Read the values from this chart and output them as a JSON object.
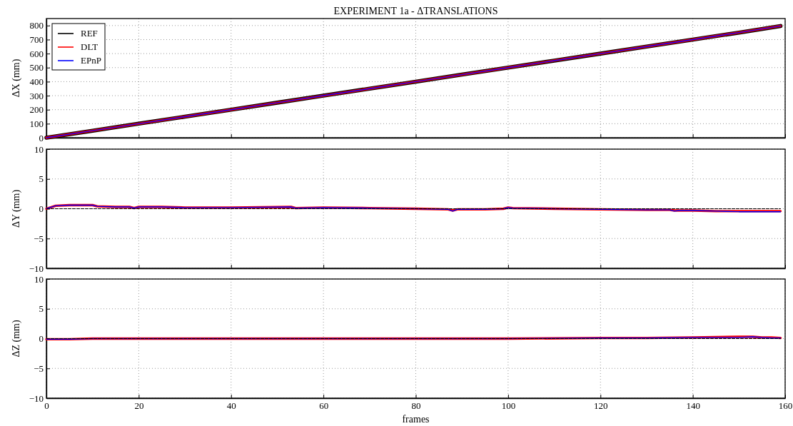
{
  "chart_data": [
    {
      "type": "line",
      "title": "EXPERIMENT 1a - ΔTRANSLATIONS",
      "ylabel": "ΔX (mm)",
      "xlim": [
        0,
        160
      ],
      "xticks": [
        0,
        20,
        40,
        60,
        80,
        100,
        120,
        140,
        160
      ],
      "ylim": [
        0,
        850
      ],
      "yticks": [
        0,
        100,
        200,
        300,
        400,
        500,
        600,
        700,
        800
      ],
      "grid": true,
      "legend": "top left",
      "tick_labels": "y",
      "series": [
        {
          "name": "REF",
          "color": "#000000",
          "line_style": "solid",
          "x": [
            0,
            10,
            20,
            30,
            40,
            50,
            60,
            70,
            80,
            90,
            100,
            110,
            120,
            130,
            140,
            150,
            159
          ],
          "values": [
            0,
            50,
            100,
            150,
            200,
            250,
            300,
            350,
            400,
            450,
            500,
            550,
            600,
            650,
            700,
            750,
            797
          ]
        },
        {
          "name": "DLT",
          "color": "#ff0000",
          "line_style": "solid",
          "x": [
            0,
            10,
            20,
            30,
            40,
            50,
            60,
            70,
            80,
            90,
            100,
            110,
            120,
            130,
            140,
            150,
            159
          ],
          "values": [
            0,
            50,
            100,
            150,
            200,
            250,
            300,
            350,
            400,
            450,
            500,
            550,
            600,
            650,
            700,
            750,
            797
          ]
        },
        {
          "name": "EPnP",
          "color": "#0000ff",
          "line_style": "solid",
          "x": [
            0,
            10,
            20,
            30,
            40,
            50,
            60,
            70,
            80,
            90,
            100,
            110,
            120,
            130,
            140,
            150,
            159
          ],
          "values": [
            0,
            50,
            100,
            150,
            200,
            250,
            300,
            350,
            400,
            450,
            500,
            550,
            600,
            650,
            700,
            750,
            797
          ]
        }
      ]
    },
    {
      "type": "line",
      "ylabel": "ΔY (mm)",
      "xlim": [
        0,
        160
      ],
      "xticks": [
        0,
        20,
        40,
        60,
        80,
        100,
        120,
        140,
        160
      ],
      "ylim": [
        -10,
        10
      ],
      "yticks": [
        -10,
        -5,
        0,
        5,
        10
      ],
      "grid": true,
      "tick_labels": "y",
      "series": [
        {
          "color": "#000000",
          "line_style": "dashed",
          "x": [
            0,
            159
          ],
          "values": [
            0,
            0
          ]
        },
        {
          "color": "#ff0000",
          "line_style": "solid",
          "x": [
            0,
            2,
            5,
            10,
            11,
            15,
            18,
            19,
            20,
            25,
            30,
            40,
            53,
            54,
            60,
            70,
            80,
            87,
            88,
            89,
            95,
            99,
            100,
            101,
            110,
            120,
            130,
            135,
            136,
            137,
            140,
            145,
            150,
            159
          ],
          "values": [
            0,
            0.5,
            0.6,
            0.6,
            0.4,
            0.3,
            0.3,
            0.1,
            0.3,
            0.3,
            0.2,
            0.2,
            0.3,
            0.1,
            0.2,
            0.1,
            0,
            -0.1,
            -0.3,
            -0.1,
            -0.1,
            0,
            0.2,
            0.1,
            0,
            -0.1,
            -0.2,
            -0.2,
            -0.3,
            -0.3,
            -0.3,
            -0.4,
            -0.4,
            -0.4
          ]
        },
        {
          "color": "#0000ff",
          "line_style": "solid",
          "x": [
            0,
            2,
            5,
            10,
            11,
            15,
            18,
            19,
            20,
            25,
            30,
            40,
            53,
            54,
            60,
            70,
            80,
            87,
            88,
            89,
            95,
            99,
            100,
            101,
            110,
            120,
            130,
            135,
            136,
            137,
            140,
            145,
            150,
            159
          ],
          "values": [
            0,
            0.5,
            0.6,
            0.6,
            0.4,
            0.3,
            0.3,
            0.1,
            0.3,
            0.3,
            0.2,
            0.2,
            0.3,
            0.1,
            0.2,
            0.1,
            0,
            -0.1,
            -0.4,
            -0.1,
            -0.1,
            0,
            0.2,
            0.1,
            0,
            -0.1,
            -0.2,
            -0.2,
            -0.4,
            -0.3,
            -0.3,
            -0.4,
            -0.5,
            -0.5
          ]
        }
      ]
    },
    {
      "type": "line",
      "ylabel": "ΔZ (mm)",
      "xlabel": "frames",
      "xlim": [
        0,
        160
      ],
      "xticks": [
        0,
        20,
        40,
        60,
        80,
        100,
        120,
        140,
        160
      ],
      "ylim": [
        -10,
        10
      ],
      "yticks": [
        -10,
        -5,
        0,
        5,
        10
      ],
      "grid": true,
      "series": [
        {
          "color": "#000000",
          "line_style": "dashed",
          "x": [
            0,
            159
          ],
          "values": [
            0,
            0
          ]
        },
        {
          "color": "#ff0000",
          "line_style": "solid",
          "x": [
            0,
            5,
            10,
            20,
            40,
            60,
            80,
            100,
            120,
            130,
            140,
            150,
            153,
            155,
            157,
            159
          ],
          "values": [
            -0.1,
            -0.1,
            0,
            0,
            0,
            0,
            0,
            0,
            0.1,
            0.1,
            0.2,
            0.3,
            0.3,
            0.2,
            0.2,
            0.1
          ]
        },
        {
          "color": "#0000ff",
          "line_style": "solid",
          "x": [
            0,
            5,
            10,
            20,
            40,
            60,
            80,
            100,
            120,
            130,
            140,
            150,
            153,
            155,
            157,
            159
          ],
          "values": [
            -0.1,
            -0.1,
            0,
            0,
            0,
            0,
            0,
            0,
            0.1,
            0.1,
            0.2,
            0.2,
            0.3,
            0.2,
            0.1,
            0.1
          ]
        }
      ]
    }
  ]
}
